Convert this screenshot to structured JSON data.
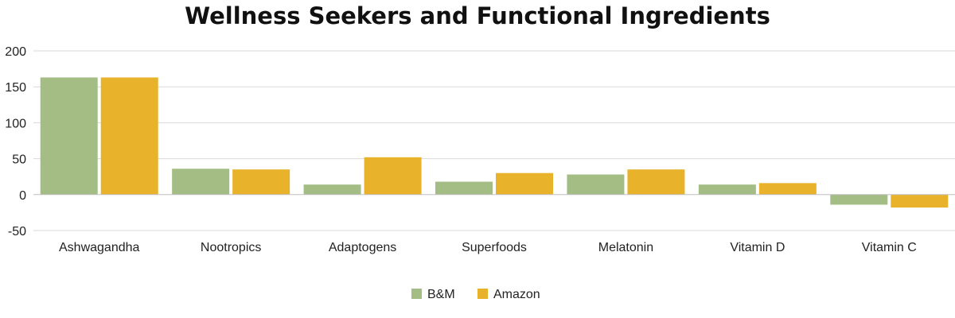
{
  "chart_data": {
    "type": "bar",
    "title": "Wellness Seekers and Functional Ingredients",
    "xlabel": "",
    "ylabel": "",
    "categories": [
      "Ashwagandha",
      "Nootropics",
      "Adaptogens",
      "Superfoods",
      "Melatonin",
      "Vitamin D",
      "Vitamin C"
    ],
    "series": [
      {
        "name": "B&M",
        "color": "#a3bd84",
        "values": [
          163,
          36,
          14,
          18,
          28,
          14,
          -14
        ]
      },
      {
        "name": "Amazon",
        "color": "#e8b32a",
        "values": [
          163,
          35,
          52,
          30,
          35,
          16,
          -18
        ]
      }
    ],
    "ylim": [
      -50,
      200
    ],
    "yticks": [
      -50,
      0,
      50,
      100,
      150,
      200
    ],
    "grid": true,
    "legend": "bottom-center"
  }
}
